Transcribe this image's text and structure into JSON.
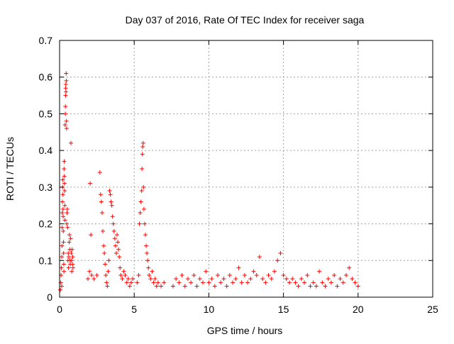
{
  "chart_data": {
    "type": "scatter",
    "title": "Day 037 of 2016, Rate Of TEC Index for receiver saga",
    "xlabel": "GPS time / hours",
    "ylabel": "ROTI / TECUs",
    "xlim": [
      0,
      25
    ],
    "ylim": [
      0,
      0.7
    ],
    "xticks": [
      0,
      5,
      10,
      15,
      20,
      25
    ],
    "yticks": [
      0,
      0.1,
      0.2,
      0.3,
      0.4,
      0.5,
      0.6,
      0.7
    ],
    "grid": true,
    "marker": "+",
    "color": "#ff0000",
    "series": [
      {
        "points": [
          [
            0.05,
            0.02
          ],
          [
            0.08,
            0.04
          ],
          [
            0.1,
            0.06
          ],
          [
            0.12,
            0.08
          ],
          [
            0.14,
            0.03
          ],
          [
            0.15,
            0.11
          ],
          [
            0.16,
            0.14
          ],
          [
            0.17,
            0.19
          ],
          [
            0.18,
            0.23
          ],
          [
            0.19,
            0.26
          ],
          [
            0.2,
            0.3
          ],
          [
            0.21,
            0.32
          ],
          [
            0.22,
            0.28
          ],
          [
            0.23,
            0.24
          ],
          [
            0.24,
            0.22
          ],
          [
            0.25,
            0.18
          ],
          [
            0.26,
            0.15
          ],
          [
            0.27,
            0.12
          ],
          [
            0.28,
            0.09
          ],
          [
            0.29,
            0.07
          ],
          [
            0.3,
            0.35
          ],
          [
            0.31,
            0.37
          ],
          [
            0.32,
            0.33
          ],
          [
            0.33,
            0.31
          ],
          [
            0.34,
            0.29
          ],
          [
            0.35,
            0.25
          ],
          [
            0.36,
            0.21
          ],
          [
            0.37,
            0.47
          ],
          [
            0.38,
            0.5
          ],
          [
            0.39,
            0.52
          ],
          [
            0.4,
            0.55
          ],
          [
            0.41,
            0.57
          ],
          [
            0.42,
            0.58
          ],
          [
            0.43,
            0.56
          ],
          [
            0.44,
            0.61
          ],
          [
            0.45,
            0.59
          ],
          [
            0.46,
            0.48
          ],
          [
            0.47,
            0.46
          ],
          [
            0.48,
            0.2
          ],
          [
            0.5,
            0.23
          ],
          [
            0.52,
            0.24
          ],
          [
            0.54,
            0.19
          ],
          [
            0.56,
            0.1
          ],
          [
            0.58,
            0.12
          ],
          [
            0.6,
            0.08
          ],
          [
            0.62,
            0.11
          ],
          [
            0.64,
            0.15
          ],
          [
            0.66,
            0.17
          ],
          [
            0.68,
            0.13
          ],
          [
            0.7,
            0.1
          ],
          [
            0.72,
            0.09
          ],
          [
            0.74,
            0.16
          ],
          [
            0.76,
            0.42
          ],
          [
            0.78,
            0.12
          ],
          [
            0.8,
            0.1
          ],
          [
            0.82,
            0.07
          ],
          [
            0.84,
            0.13
          ],
          [
            0.86,
            0.09
          ],
          [
            0.88,
            0.11
          ],
          [
            0.9,
            0.08
          ],
          [
            1.9,
            0.05
          ],
          [
            2.0,
            0.07
          ],
          [
            2.05,
            0.31
          ],
          [
            2.1,
            0.17
          ],
          [
            2.15,
            0.06
          ],
          [
            2.3,
            0.05
          ],
          [
            2.5,
            0.06
          ],
          [
            2.7,
            0.34
          ],
          [
            2.75,
            0.28
          ],
          [
            2.8,
            0.26
          ],
          [
            2.85,
            0.23
          ],
          [
            2.9,
            0.18
          ],
          [
            2.95,
            0.14
          ],
          [
            3.0,
            0.12
          ],
          [
            3.05,
            0.09
          ],
          [
            3.1,
            0.06
          ],
          [
            3.15,
            0.04
          ],
          [
            3.2,
            0.03
          ],
          [
            3.25,
            0.07
          ],
          [
            3.3,
            0.1
          ],
          [
            3.35,
            0.29
          ],
          [
            3.4,
            0.28
          ],
          [
            3.45,
            0.26
          ],
          [
            3.5,
            0.25
          ],
          [
            3.55,
            0.22
          ],
          [
            3.6,
            0.2
          ],
          [
            3.65,
            0.18
          ],
          [
            3.7,
            0.16
          ],
          [
            3.75,
            0.14
          ],
          [
            3.8,
            0.12
          ],
          [
            3.85,
            0.17
          ],
          [
            3.9,
            0.15
          ],
          [
            3.95,
            0.13
          ],
          [
            4.0,
            0.11
          ],
          [
            4.05,
            0.08
          ],
          [
            4.1,
            0.06
          ],
          [
            4.2,
            0.05
          ],
          [
            4.3,
            0.07
          ],
          [
            4.4,
            0.06
          ],
          [
            4.5,
            0.04
          ],
          [
            4.6,
            0.05
          ],
          [
            4.7,
            0.03
          ],
          [
            4.8,
            0.04
          ],
          [
            4.9,
            0.05
          ],
          [
            5.2,
            0.04
          ],
          [
            5.3,
            0.06
          ],
          [
            5.35,
            0.2
          ],
          [
            5.4,
            0.23
          ],
          [
            5.45,
            0.26
          ],
          [
            5.5,
            0.29
          ],
          [
            5.52,
            0.35
          ],
          [
            5.55,
            0.39
          ],
          [
            5.57,
            0.41
          ],
          [
            5.6,
            0.42
          ],
          [
            5.62,
            0.3
          ],
          [
            5.65,
            0.24
          ],
          [
            5.7,
            0.2
          ],
          [
            5.75,
            0.17
          ],
          [
            5.8,
            0.14
          ],
          [
            5.85,
            0.12
          ],
          [
            5.9,
            0.1
          ],
          [
            5.95,
            0.08
          ],
          [
            6.0,
            0.06
          ],
          [
            6.1,
            0.05
          ],
          [
            6.2,
            0.07
          ],
          [
            6.3,
            0.04
          ],
          [
            6.4,
            0.05
          ],
          [
            6.5,
            0.03
          ],
          [
            6.6,
            0.04
          ],
          [
            6.8,
            0.03
          ],
          [
            7.0,
            0.04
          ],
          [
            7.6,
            0.03
          ],
          [
            7.8,
            0.05
          ],
          [
            8.0,
            0.04
          ],
          [
            8.2,
            0.06
          ],
          [
            8.4,
            0.03
          ],
          [
            8.6,
            0.05
          ],
          [
            8.8,
            0.04
          ],
          [
            9.0,
            0.06
          ],
          [
            9.2,
            0.03
          ],
          [
            9.4,
            0.05
          ],
          [
            9.6,
            0.04
          ],
          [
            9.8,
            0.07
          ],
          [
            10.0,
            0.04
          ],
          [
            10.2,
            0.05
          ],
          [
            10.4,
            0.03
          ],
          [
            10.6,
            0.06
          ],
          [
            10.8,
            0.04
          ],
          [
            11.0,
            0.05
          ],
          [
            11.2,
            0.03
          ],
          [
            11.4,
            0.06
          ],
          [
            11.6,
            0.04
          ],
          [
            11.8,
            0.05
          ],
          [
            12.0,
            0.08
          ],
          [
            12.2,
            0.04
          ],
          [
            12.4,
            0.06
          ],
          [
            12.6,
            0.04
          ],
          [
            12.8,
            0.05
          ],
          [
            13.0,
            0.07
          ],
          [
            13.2,
            0.06
          ],
          [
            13.4,
            0.11
          ],
          [
            13.6,
            0.05
          ],
          [
            13.8,
            0.04
          ],
          [
            14.0,
            0.06
          ],
          [
            14.2,
            0.05
          ],
          [
            14.4,
            0.07
          ],
          [
            14.6,
            0.1
          ],
          [
            14.8,
            0.12
          ],
          [
            15.0,
            0.06
          ],
          [
            15.2,
            0.05
          ],
          [
            15.4,
            0.04
          ],
          [
            15.6,
            0.05
          ],
          [
            15.8,
            0.04
          ],
          [
            16.0,
            0.03
          ],
          [
            16.2,
            0.05
          ],
          [
            16.4,
            0.04
          ],
          [
            16.6,
            0.06
          ],
          [
            16.8,
            0.03
          ],
          [
            17.0,
            0.04
          ],
          [
            17.2,
            0.03
          ],
          [
            17.4,
            0.07
          ],
          [
            17.6,
            0.04
          ],
          [
            17.8,
            0.03
          ],
          [
            18.0,
            0.05
          ],
          [
            18.2,
            0.04
          ],
          [
            18.4,
            0.06
          ],
          [
            18.6,
            0.03
          ],
          [
            18.8,
            0.05
          ],
          [
            19.0,
            0.04
          ],
          [
            19.2,
            0.06
          ],
          [
            19.4,
            0.08
          ],
          [
            19.6,
            0.05
          ],
          [
            19.8,
            0.04
          ],
          [
            20.0,
            0.03
          ]
        ]
      }
    ]
  }
}
